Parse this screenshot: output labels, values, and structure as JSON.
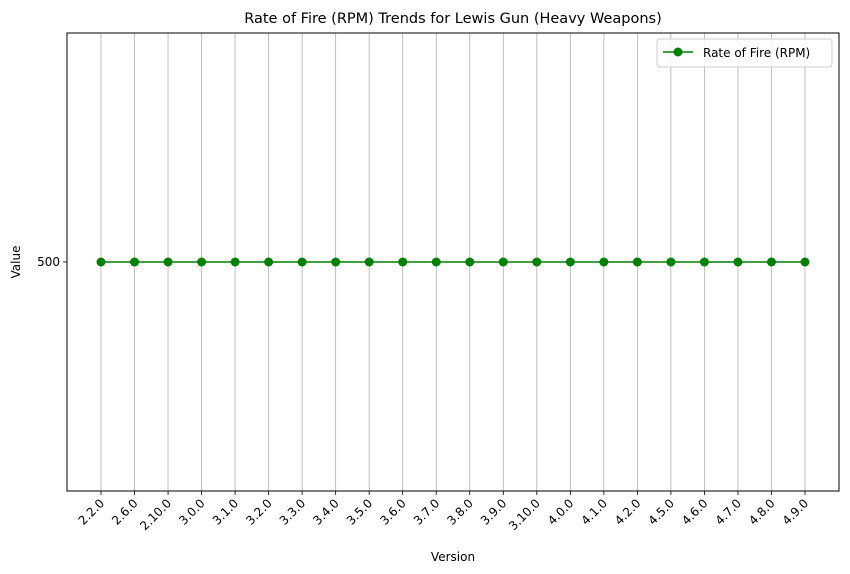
{
  "chart_data": {
    "type": "line",
    "title": "Rate of Fire (RPM) Trends for Lewis Gun (Heavy Weapons)",
    "xlabel": "Version",
    "ylabel": "Value",
    "categories": [
      "2.2.0",
      "2.6.0",
      "2.10.0",
      "3.0.0",
      "3.1.0",
      "3.2.0",
      "3.3.0",
      "3.4.0",
      "3.5.0",
      "3.6.0",
      "3.7.0",
      "3.8.0",
      "3.9.0",
      "3.10.0",
      "4.0.0",
      "4.1.0",
      "4.2.0",
      "4.5.0",
      "4.6.0",
      "4.7.0",
      "4.8.0",
      "4.9.0"
    ],
    "series": [
      {
        "name": "Rate of Fire (RPM)",
        "color": "#008000",
        "marker": "circle",
        "values": [
          500,
          500,
          500,
          500,
          500,
          500,
          500,
          500,
          500,
          500,
          500,
          500,
          500,
          500,
          500,
          500,
          500,
          500,
          500,
          500,
          500,
          500
        ]
      }
    ],
    "yticks": [
      "500"
    ],
    "ylim": [
      450,
      550
    ],
    "grid": "vertical",
    "legend_position": "top-right",
    "xtick_rotation": 45
  }
}
